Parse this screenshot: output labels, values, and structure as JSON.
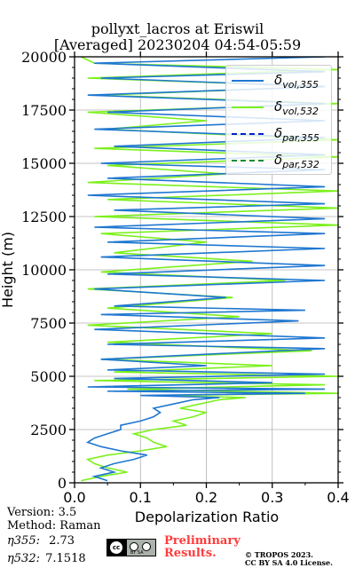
{
  "chart_data": {
    "type": "line",
    "title": "pollyxt_lacros at Eriswil",
    "subtitle": "[Averaged] 20230204 04:54-05:59",
    "xlabel": "Depolarization Ratio",
    "ylabel": "Height (m)",
    "xlim": [
      0,
      0.4
    ],
    "ylim": [
      0,
      20000
    ],
    "xticks": [
      "0.0",
      "0.1",
      "0.2",
      "0.3",
      "0.4"
    ],
    "yticks": [
      "0",
      "2500",
      "5000",
      "7500",
      "10000",
      "12500",
      "15000",
      "17500",
      "20000"
    ],
    "grid": true,
    "legend_position": "top-right",
    "series": [
      {
        "name": "δvol,355",
        "legend_symbol": "δ",
        "legend_sub": "vol,355",
        "color": "#1f77d0",
        "linestyle": "solid",
        "points": [
          [
            0.05,
            100
          ],
          [
            0.03,
            300
          ],
          [
            0.06,
            500
          ],
          [
            0.04,
            700
          ],
          [
            0.06,
            900
          ],
          [
            0.09,
            1100
          ],
          [
            0.11,
            1300
          ],
          [
            0.07,
            1500
          ],
          [
            0.04,
            1700
          ],
          [
            0.02,
            1900
          ],
          [
            0.03,
            2100
          ],
          [
            0.05,
            2300
          ],
          [
            0.07,
            2500
          ],
          [
            0.07,
            2700
          ],
          [
            0.1,
            2900
          ],
          [
            0.12,
            3100
          ],
          [
            0.13,
            3300
          ],
          [
            0.12,
            3500
          ],
          [
            0.15,
            3700
          ],
          [
            0.18,
            3900
          ],
          [
            0.22,
            4000
          ],
          [
            0.1,
            4100
          ],
          [
            0.35,
            4200
          ],
          [
            0.05,
            4300
          ],
          [
            0.38,
            4400
          ],
          [
            0.02,
            4500
          ],
          [
            0.3,
            4700
          ],
          [
            0.06,
            4900
          ],
          [
            0.38,
            5100
          ],
          [
            0.05,
            5300
          ],
          [
            0.2,
            5500
          ],
          [
            0.04,
            5800
          ],
          [
            0.38,
            6300
          ],
          [
            0.05,
            6500
          ],
          [
            0.38,
            6800
          ],
          [
            0.03,
            7200
          ],
          [
            0.34,
            7600
          ],
          [
            0.04,
            7900
          ],
          [
            0.35,
            8100
          ],
          [
            0.06,
            8300
          ],
          [
            0.23,
            8700
          ],
          [
            0.03,
            9100
          ],
          [
            0.38,
            9500
          ],
          [
            0.05,
            9800
          ],
          [
            0.38,
            10200
          ],
          [
            0.04,
            10600
          ],
          [
            0.38,
            11000
          ],
          [
            0.05,
            11300
          ],
          [
            0.38,
            11700
          ],
          [
            0.03,
            12000
          ],
          [
            0.38,
            12400
          ],
          [
            0.06,
            12800
          ],
          [
            0.38,
            13100
          ],
          [
            0.02,
            13500
          ],
          [
            0.38,
            13900
          ],
          [
            0.05,
            14300
          ],
          [
            0.38,
            14700
          ],
          [
            0.04,
            15000
          ],
          [
            0.38,
            15400
          ],
          [
            0.06,
            15800
          ],
          [
            0.38,
            16200
          ],
          [
            0.03,
            16600
          ],
          [
            0.38,
            17000
          ],
          [
            0.05,
            17400
          ],
          [
            0.38,
            17800
          ],
          [
            0.02,
            18200
          ],
          [
            0.38,
            18600
          ],
          [
            0.04,
            19000
          ],
          [
            0.38,
            19300
          ],
          [
            0.03,
            19700
          ],
          [
            0.38,
            20000
          ]
        ]
      },
      {
        "name": "δvol,532",
        "legend_symbol": "δ",
        "legend_sub": "vol,532",
        "color": "#7cf01c",
        "linestyle": "solid",
        "points": [
          [
            0.01,
            100
          ],
          [
            0.04,
            300
          ],
          [
            0.08,
            500
          ],
          [
            0.05,
            700
          ],
          [
            0.03,
            900
          ],
          [
            0.02,
            1100
          ],
          [
            0.05,
            1300
          ],
          [
            0.1,
            1500
          ],
          [
            0.14,
            1700
          ],
          [
            0.12,
            1900
          ],
          [
            0.11,
            2100
          ],
          [
            0.09,
            2300
          ],
          [
            0.12,
            2500
          ],
          [
            0.17,
            2700
          ],
          [
            0.15,
            2900
          ],
          [
            0.18,
            3100
          ],
          [
            0.2,
            3300
          ],
          [
            0.16,
            3500
          ],
          [
            0.19,
            3700
          ],
          [
            0.22,
            3900
          ],
          [
            0.26,
            4000
          ],
          [
            0.12,
            4100
          ],
          [
            0.4,
            4200
          ],
          [
            0.08,
            4400
          ],
          [
            0.38,
            4600
          ],
          [
            0.03,
            4800
          ],
          [
            0.4,
            5000
          ],
          [
            0.06,
            5200
          ],
          [
            0.3,
            5500
          ],
          [
            0.04,
            5800
          ],
          [
            0.36,
            6200
          ],
          [
            0.05,
            6600
          ],
          [
            0.3,
            7000
          ],
          [
            0.02,
            7400
          ],
          [
            0.25,
            7800
          ],
          [
            0.05,
            8200
          ],
          [
            0.24,
            8700
          ],
          [
            0.02,
            9100
          ],
          [
            0.32,
            9500
          ],
          [
            0.04,
            9900
          ],
          [
            0.27,
            10400
          ],
          [
            0.06,
            10800
          ],
          [
            0.2,
            11300
          ],
          [
            0.04,
            11700
          ],
          [
            0.4,
            12100
          ],
          [
            0.03,
            12500
          ],
          [
            0.4,
            12900
          ],
          [
            0.05,
            13300
          ],
          [
            0.4,
            13700
          ],
          [
            0.02,
            14100
          ],
          [
            0.23,
            14500
          ],
          [
            0.05,
            14900
          ],
          [
            0.4,
            15300
          ],
          [
            0.03,
            15700
          ],
          [
            0.4,
            16100
          ],
          [
            0.05,
            16600
          ],
          [
            0.2,
            17000
          ],
          [
            0.02,
            17400
          ],
          [
            0.4,
            17800
          ],
          [
            0.04,
            18200
          ],
          [
            0.38,
            18600
          ],
          [
            0.02,
            19000
          ],
          [
            0.4,
            19400
          ],
          [
            0.03,
            19700
          ],
          [
            0.01,
            20000
          ]
        ]
      },
      {
        "name": "δpar,355",
        "legend_symbol": "δ",
        "legend_sub": "par,355",
        "color": "#0a1ecf",
        "linestyle": "dashed",
        "points": []
      },
      {
        "name": "δpar,532",
        "legend_symbol": "δ",
        "legend_sub": "par,532",
        "color": "#1f8a3a",
        "linestyle": "dashed",
        "points": []
      }
    ]
  },
  "footer": {
    "version": "Version: 3.5",
    "method": "Method: Raman",
    "eta355_label": "η355:",
    "eta355_value": "2.73",
    "eta532_label": "η532:",
    "eta532_value": "7.1518",
    "preliminary_line1": "Preliminary",
    "preliminary_line2": "Results.",
    "copyright_line1": "© TROPOS 2023.",
    "copyright_line2": "CC BY SA 4.0 License.",
    "cc_badge_text": "cc",
    "cc_badge_sub": "BY SA"
  }
}
